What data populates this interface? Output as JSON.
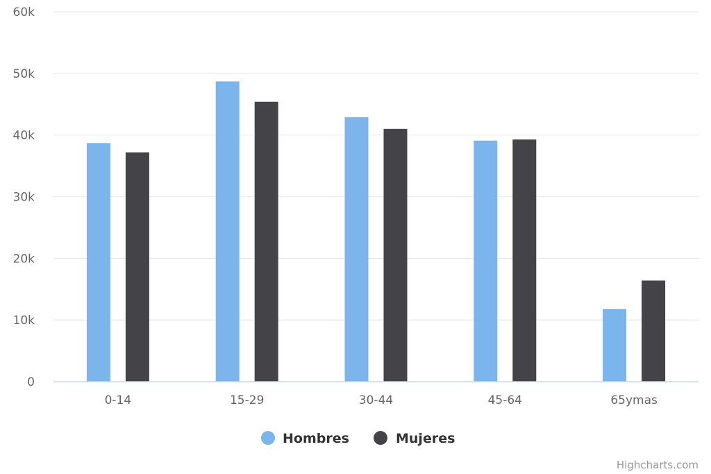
{
  "chart_data": {
    "type": "bar",
    "title": "",
    "xlabel": "",
    "ylabel": "",
    "categories": [
      "0-14",
      "15-29",
      "30-44",
      "45-64",
      "65ymas"
    ],
    "series": [
      {
        "name": "Hombres",
        "color": "#7cb5ec",
        "values": [
          38700,
          48700,
          42900,
          39100,
          11800
        ]
      },
      {
        "name": "Mujeres",
        "color": "#434348",
        "values": [
          37200,
          45400,
          41000,
          39300,
          16400
        ]
      }
    ],
    "ylim": [
      0,
      60000
    ],
    "yticks": [
      0,
      10000,
      20000,
      30000,
      40000,
      50000,
      60000
    ],
    "ytick_labels": [
      "0",
      "10k",
      "20k",
      "30k",
      "40k",
      "50k",
      "60k"
    ],
    "grid": true,
    "legend_position": "bottom-center"
  },
  "credits": {
    "text": "Highcharts.com"
  }
}
